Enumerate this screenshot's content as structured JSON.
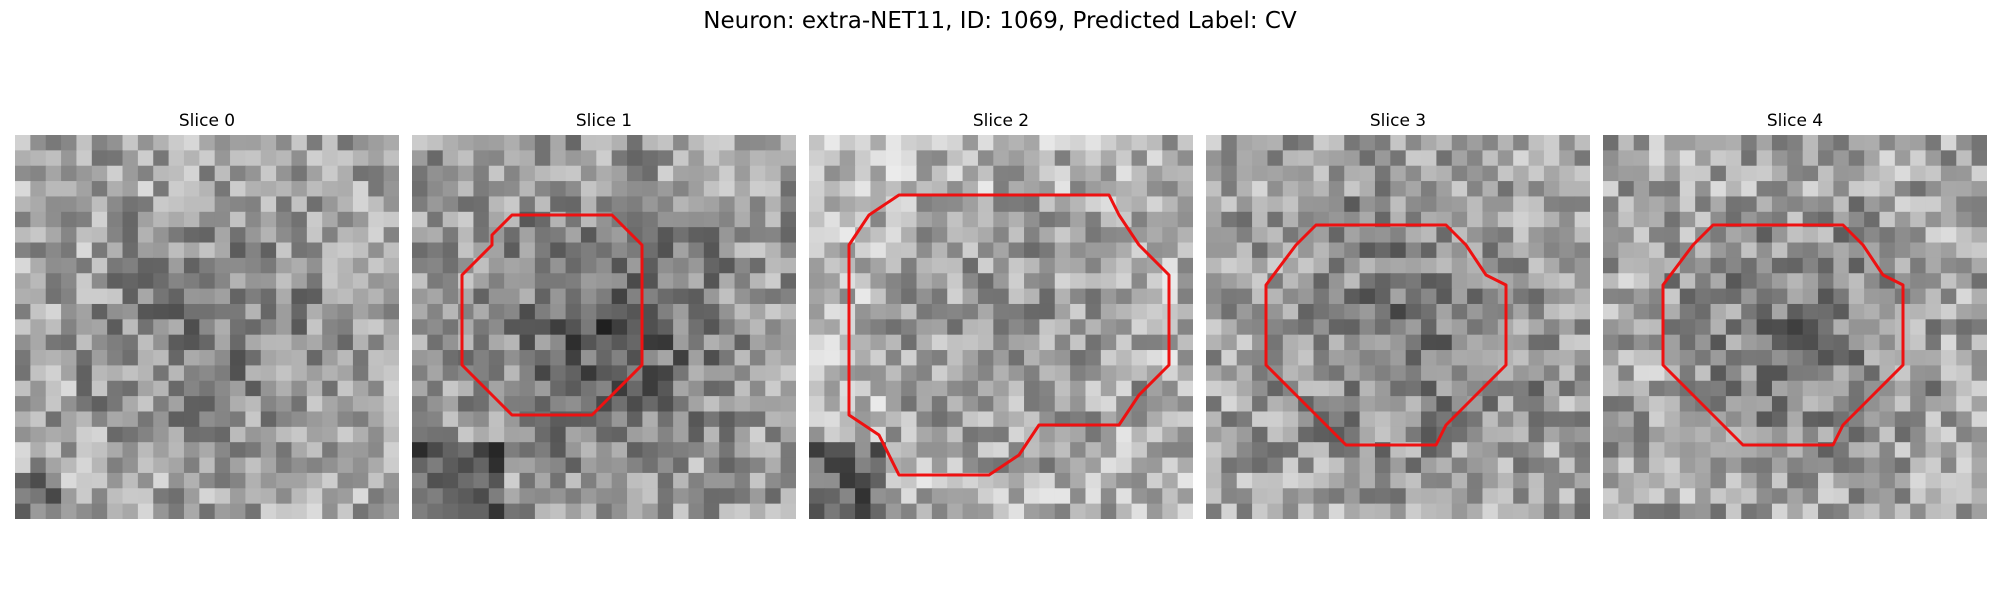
{
  "figure": {
    "title": "Neuron: extra-NET11, ID: 1069, Predicted Label: CV"
  },
  "contour_color": "#ee1111",
  "grid_size": 25,
  "panels": [
    {
      "title": "Slice 0",
      "seed": 11,
      "mean": 150,
      "dark_blob": 0.25,
      "contour": null
    },
    {
      "title": "Slice 1",
      "seed": 23,
      "mean": 140,
      "dark_blob": 0.55,
      "contour": "octagon-medium"
    },
    {
      "title": "Slice 2",
      "seed": 37,
      "mean": 165,
      "dark_blob": 0.15,
      "contour": "octagon-large"
    },
    {
      "title": "Slice 3",
      "seed": 41,
      "mean": 145,
      "dark_blob": 0.25,
      "contour": "octagon-tall"
    },
    {
      "title": "Slice 4",
      "seed": 53,
      "mean": 150,
      "dark_blob": 0.35,
      "contour": "octagon-tall"
    }
  ]
}
